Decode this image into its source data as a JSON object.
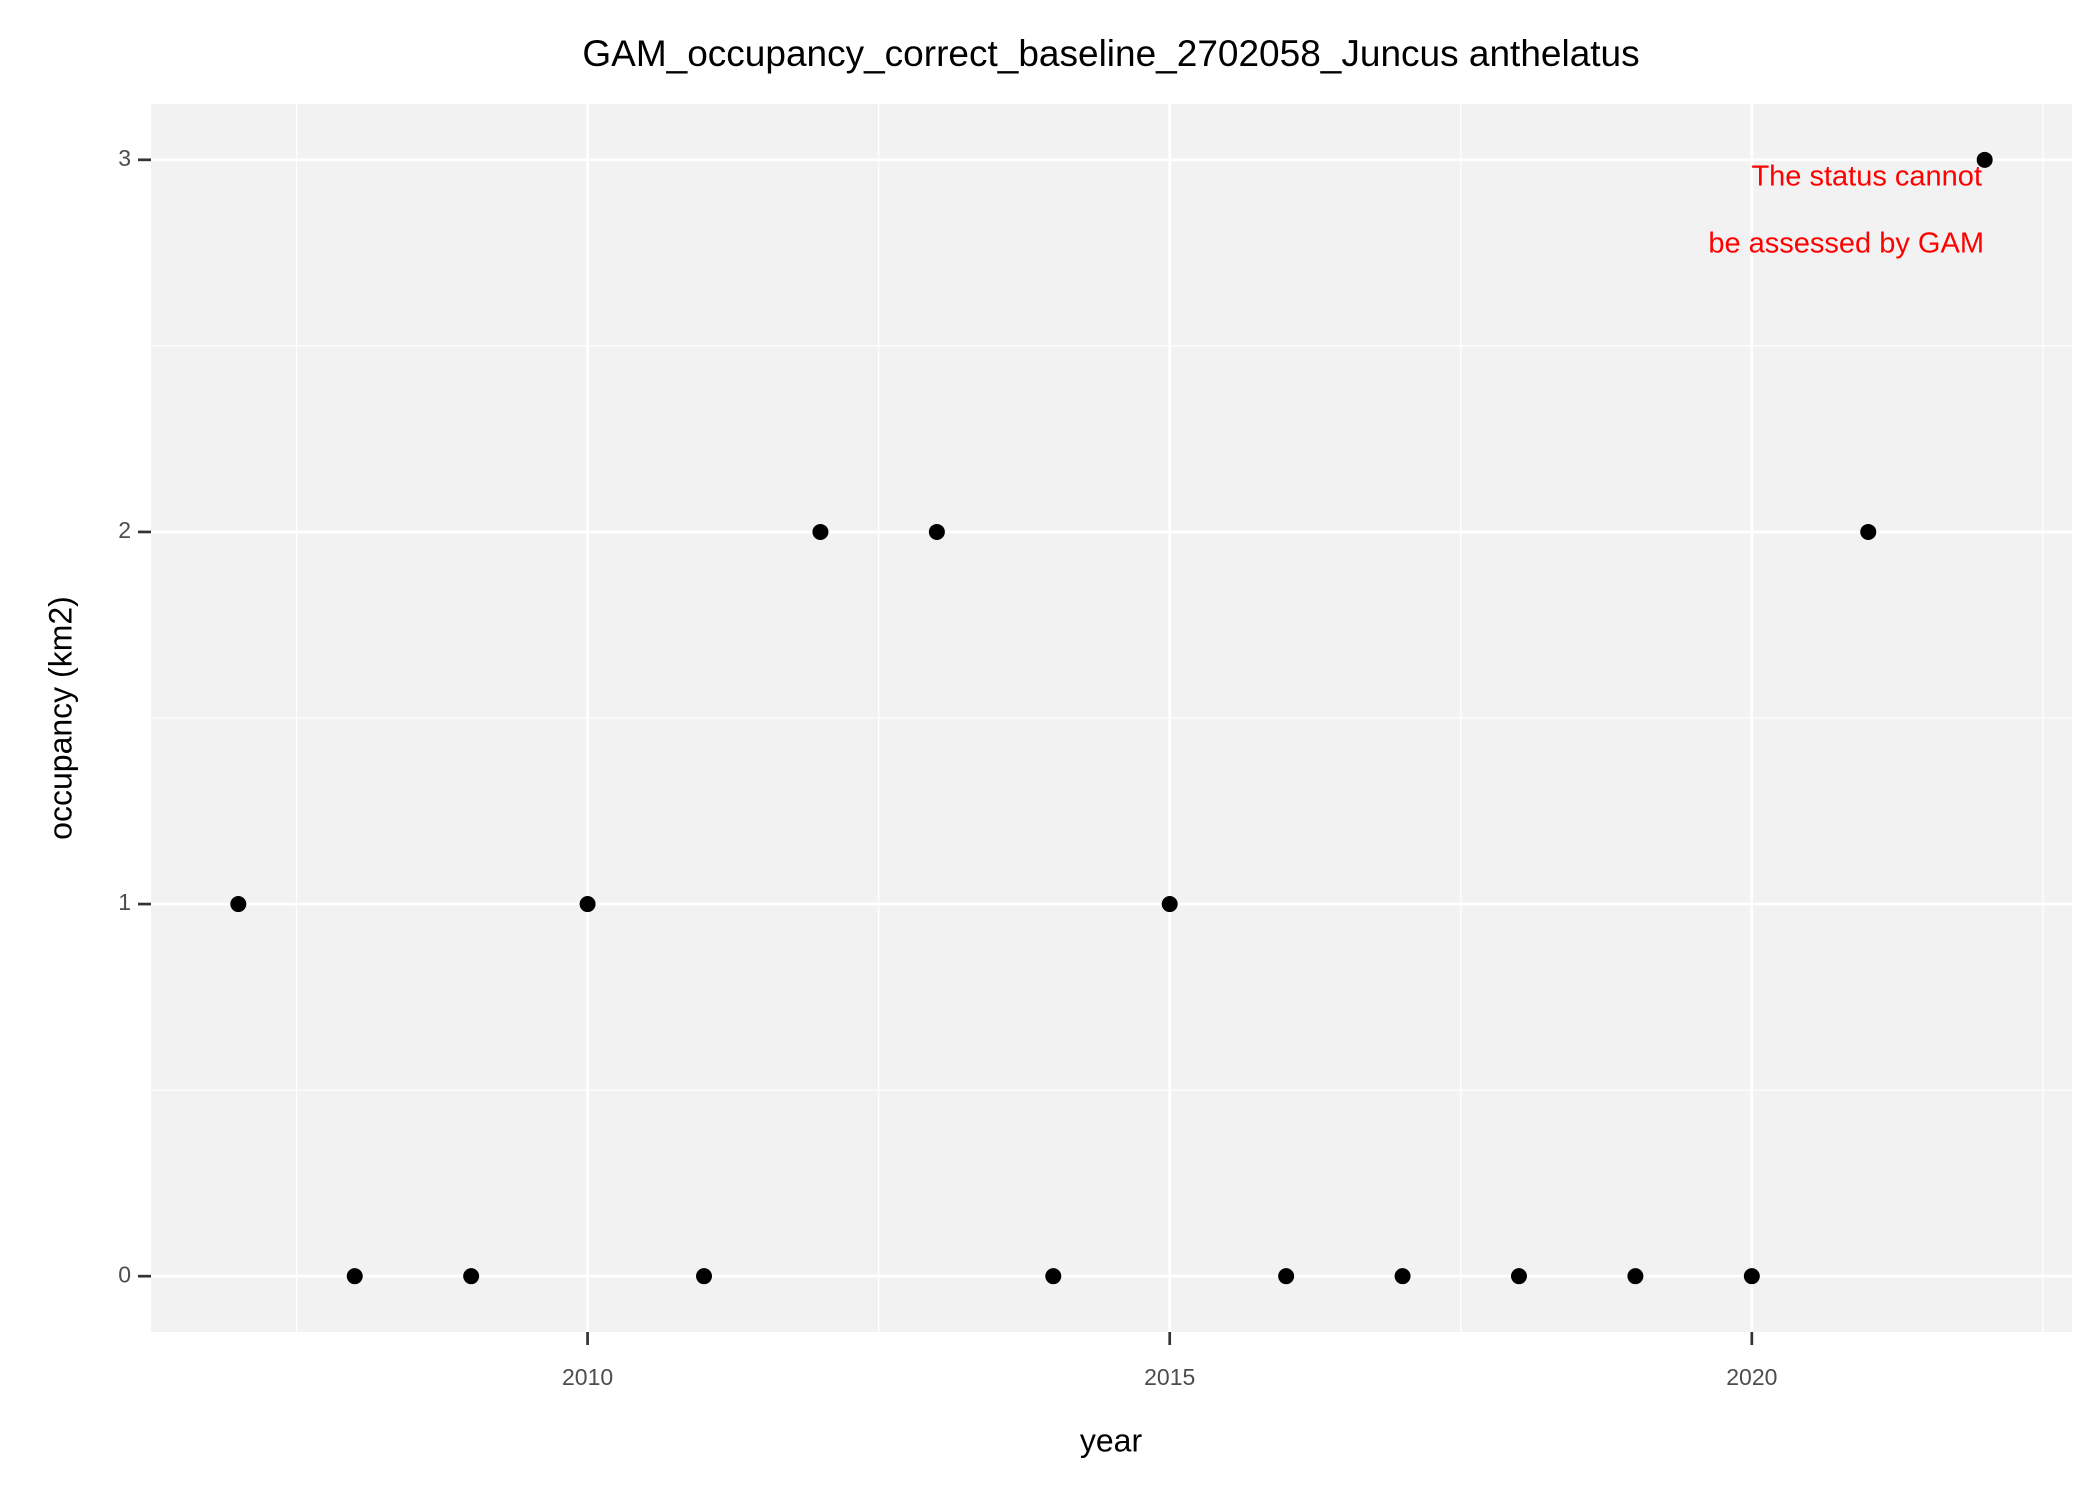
{
  "chart_data": {
    "type": "scatter",
    "title": "GAM_occupancy_correct_baseline_2702058_Juncus anthelatus",
    "x_label": "year",
    "y_label": "occupancy (km2)",
    "annotation": [
      "The status cannot",
      "be assessed by GAM"
    ],
    "annotation_color": "#ff0000",
    "x": [
      2007,
      2008,
      2009,
      2010,
      2011,
      2012,
      2013,
      2014,
      2015,
      2016,
      2017,
      2018,
      2019,
      2020,
      2021,
      2022
    ],
    "values": [
      1,
      0,
      0,
      1,
      0,
      2,
      2,
      0,
      1,
      0,
      0,
      0,
      0,
      0,
      2,
      3
    ],
    "color": "#000000",
    "xlim": [
      2006.25,
      2022.75
    ],
    "xticks": [
      2010,
      2015,
      2020
    ],
    "ylim": [
      -0.15,
      3.15
    ],
    "yticks": [
      0,
      1,
      2,
      3
    ],
    "grid": true
  }
}
